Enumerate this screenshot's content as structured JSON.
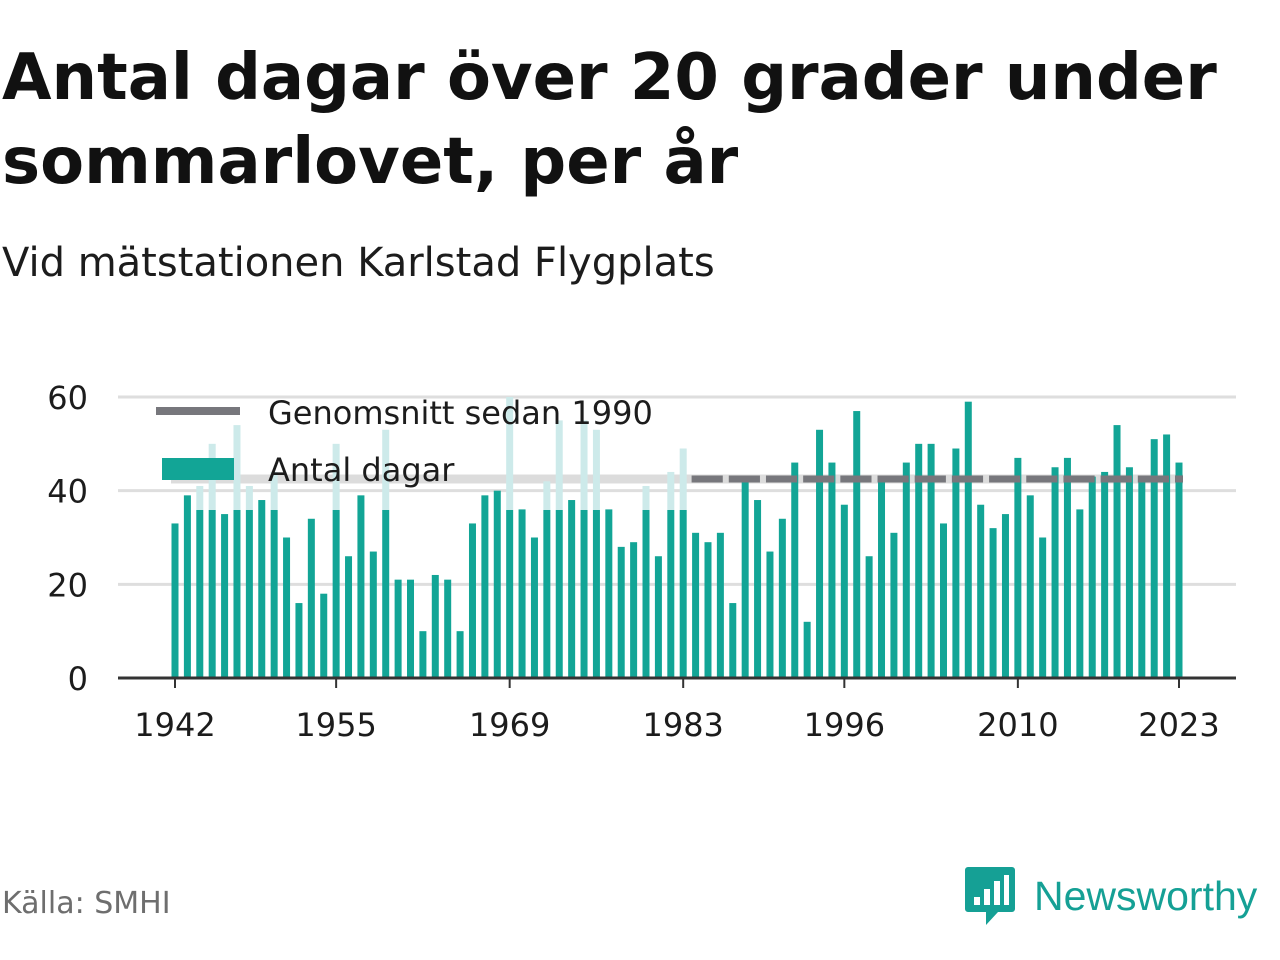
{
  "title": "Antal dagar över 20 grader under sommarlovet, per år",
  "subtitle": "Vid mätstationen Karlstad Flygplats",
  "source": "Källa: SMHI",
  "brand": "Newsworthy",
  "colors": {
    "bar": "#12a596",
    "bar_faded": "#cdeaea",
    "average_line": "#77777c",
    "average_line_faded": "#dcdcdc",
    "grid": "#dedede",
    "axis": "#333333",
    "brand": "#15a095"
  },
  "chart_data": {
    "type": "bar",
    "title": "Antal dagar över 20 grader under sommarlovet, per år",
    "subtitle": "Vid mätstationen Karlstad Flygplats",
    "xlabel": "",
    "ylabel": "",
    "ylim": [
      0,
      60
    ],
    "yticks": [
      0,
      20,
      40,
      60
    ],
    "xticks": [
      1942,
      1955,
      1969,
      1983,
      1996,
      2010,
      2023
    ],
    "grid": true,
    "legend_placement": "top-left",
    "x": [
      1942,
      1943,
      1944,
      1945,
      1946,
      1947,
      1948,
      1949,
      1950,
      1951,
      1952,
      1953,
      1954,
      1955,
      1956,
      1957,
      1958,
      1959,
      1960,
      1961,
      1962,
      1963,
      1964,
      1965,
      1966,
      1967,
      1968,
      1969,
      1970,
      1971,
      1972,
      1973,
      1974,
      1975,
      1976,
      1977,
      1978,
      1979,
      1980,
      1981,
      1982,
      1983,
      1984,
      1985,
      1986,
      1987,
      1988,
      1989,
      1990,
      1991,
      1992,
      1993,
      1994,
      1995,
      1996,
      1997,
      1998,
      1999,
      2000,
      2001,
      2002,
      2003,
      2004,
      2005,
      2006,
      2007,
      2008,
      2009,
      2010,
      2011,
      2012,
      2013,
      2014,
      2015,
      2016,
      2017,
      2018,
      2019,
      2020,
      2021,
      2022,
      2023
    ],
    "series": [
      {
        "name": "Antal dagar",
        "values": [
          33,
          39,
          41,
          50,
          35,
          54,
          41,
          38,
          44,
          30,
          16,
          34,
          18,
          50,
          26,
          39,
          27,
          53,
          21,
          21,
          10,
          22,
          21,
          10,
          33,
          39,
          40,
          60,
          36,
          30,
          42,
          55,
          38,
          55,
          53,
          36,
          28,
          29,
          41,
          26,
          44,
          49,
          31,
          29,
          31,
          16,
          42,
          38,
          27,
          34,
          46,
          12,
          53,
          46,
          37,
          57,
          26,
          42,
          31,
          46,
          50,
          50,
          33,
          49,
          59,
          37,
          32,
          35,
          47,
          39,
          30,
          45,
          47,
          36,
          43,
          44,
          54,
          45,
          42,
          51,
          52,
          46
        ]
      },
      {
        "name": "Genomsnitt sedan 1990",
        "type": "line",
        "value": 42.5,
        "from": 1942,
        "to": 2023
      }
    ]
  }
}
